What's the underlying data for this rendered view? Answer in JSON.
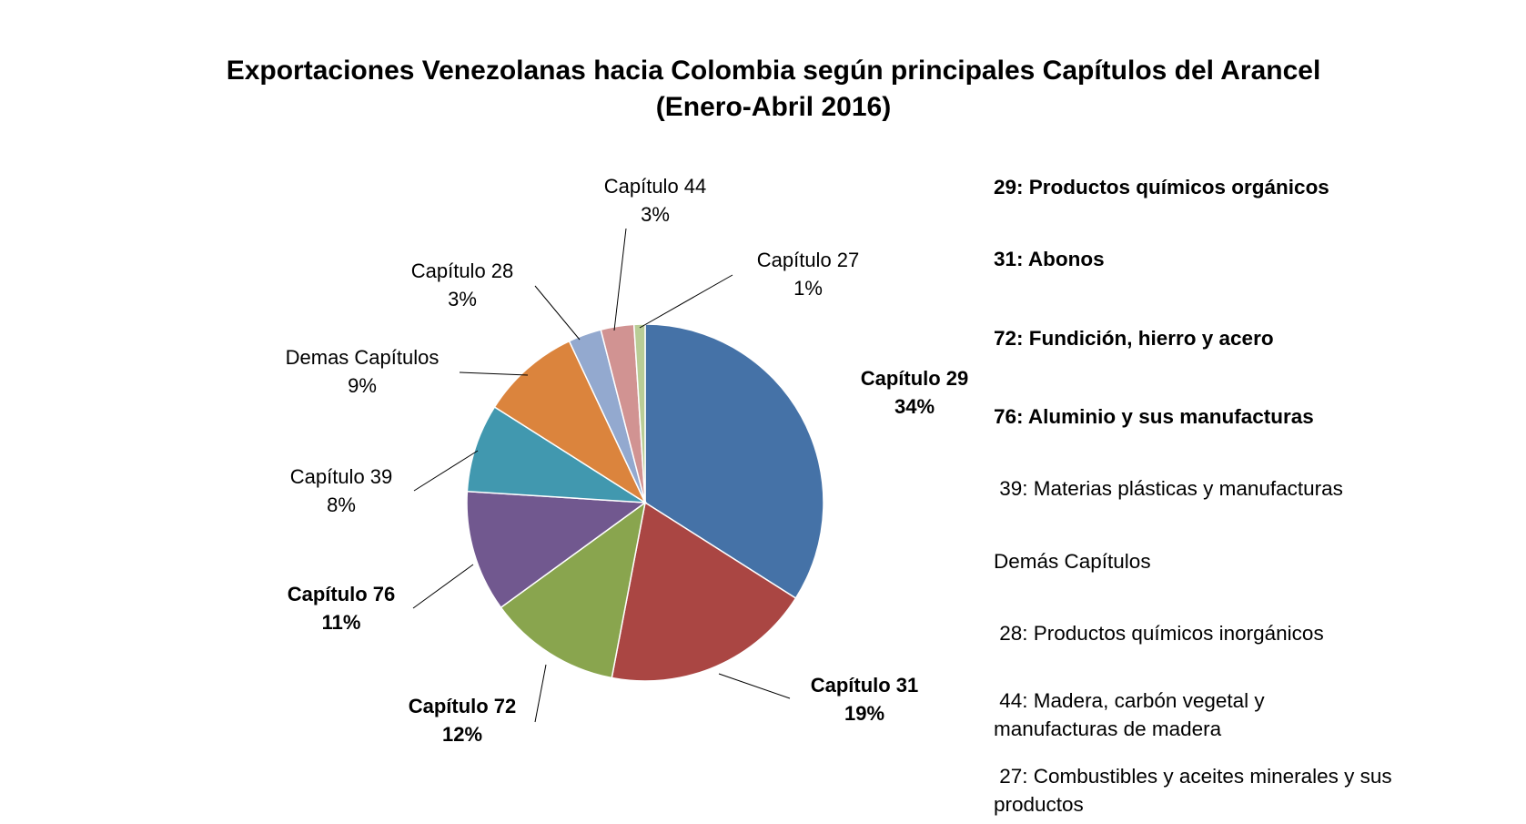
{
  "title_line1": "Exportaciones Venezolanas hacia Colombia según principales Capítulos del Arancel",
  "title_line2": "(Enero-Abril 2016)",
  "chart_data": {
    "type": "pie",
    "title": "Exportaciones Venezolanas hacia Colombia según principales Capítulos del Arancel (Enero-Abril 2016)",
    "slices": [
      {
        "label": "Capítulo 29",
        "percent": "34%",
        "value": 34,
        "color": "#4572A7",
        "bold": true
      },
      {
        "label": "Capítulo 31",
        "percent": "19%",
        "value": 19,
        "color": "#AA4643",
        "bold": true
      },
      {
        "label": "Capítulo 72",
        "percent": "12%",
        "value": 12,
        "color": "#89A54E",
        "bold": true
      },
      {
        "label": "Capítulo 76",
        "percent": "11%",
        "value": 11,
        "color": "#71588F",
        "bold": true
      },
      {
        "label": "Capítulo 39",
        "percent": "8%",
        "value": 8,
        "color": "#4198AF",
        "bold": false
      },
      {
        "label": "Demas Capítulos",
        "percent": "9%",
        "value": 9,
        "color": "#DB843D",
        "bold": false
      },
      {
        "label": "Capítulo 28",
        "percent": "3%",
        "value": 3,
        "color": "#93A9CF",
        "bold": false
      },
      {
        "label": "Capítulo 44",
        "percent": "3%",
        "value": 3,
        "color": "#D19392",
        "bold": false
      },
      {
        "label": "Capítulo 27",
        "percent": "1%",
        "value": 1,
        "color": "#B9CD96",
        "bold": false
      }
    ]
  },
  "legend": [
    {
      "lines": [
        "29: Productos químicos orgánicos"
      ],
      "bold": true
    },
    {
      "lines": [
        "31: Abonos"
      ],
      "bold": true
    },
    {
      "lines": [
        "72: Fundición, hierro y acero"
      ],
      "bold": true
    },
    {
      "lines": [
        "76: Aluminio y sus manufacturas"
      ],
      "bold": true
    },
    {
      "lines": [
        " 39: Materias plásticas y manufacturas"
      ],
      "bold": false
    },
    {
      "lines": [
        "Demás Capítulos"
      ],
      "bold": false
    },
    {
      "lines": [
        " 28: Productos químicos inorgánicos"
      ],
      "bold": false
    },
    {
      "lines": [
        " 44: Madera, carbón vegetal y",
        "manufacturas de madera"
      ],
      "bold": false
    },
    {
      "lines": [
        " 27: Combustibles y aceites minerales y sus",
        "productos"
      ],
      "bold": false
    }
  ]
}
